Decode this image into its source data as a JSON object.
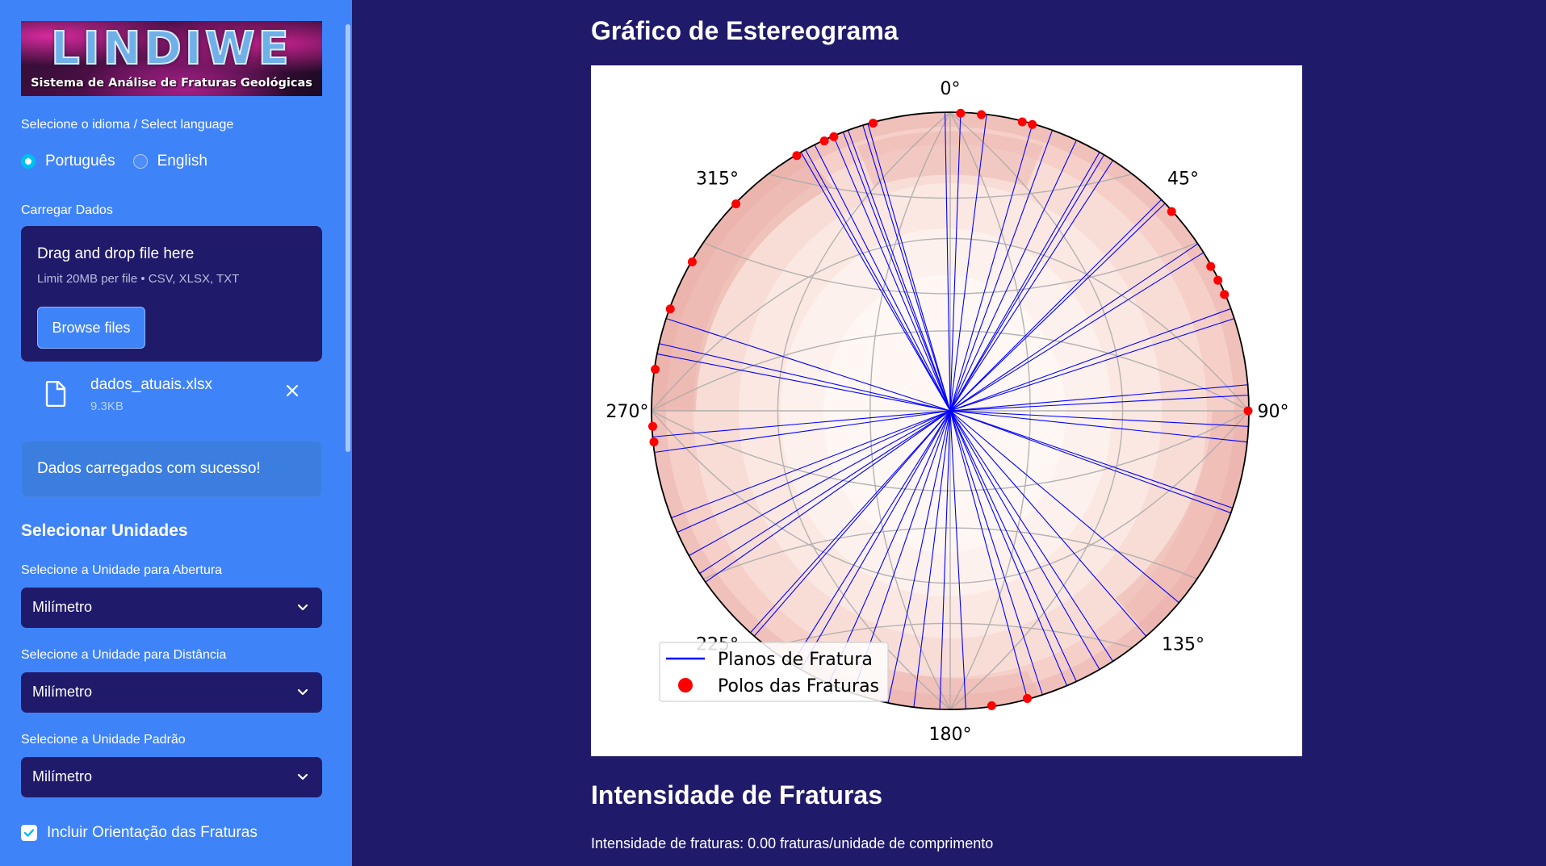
{
  "sidebar": {
    "logo": {
      "title": "LINDIWE",
      "subtitle": "Sistema de Análise de Fraturas Geológicas"
    },
    "language_label": "Selecione o idioma / Select language",
    "language_options": [
      {
        "label": "Português",
        "selected": true
      },
      {
        "label": "English",
        "selected": false
      }
    ],
    "upload_label": "Carregar Dados",
    "uploader": {
      "title": "Drag and drop file here",
      "limit": "Limit 20MB per file • CSV, XLSX, TXT",
      "button": "Browse files"
    },
    "file": {
      "name": "dados_atuais.xlsx",
      "size": "9.3KB",
      "icon": "file-icon",
      "remove_icon": "close-icon"
    },
    "success_message": "Dados carregados com sucesso!",
    "units_heading": "Selecionar Unidades",
    "selects": [
      {
        "label": "Selecione a Unidade para Abertura",
        "value": "Milímetro"
      },
      {
        "label": "Selecione a Unidade para Distância",
        "value": "Milímetro"
      },
      {
        "label": "Selecione a Unidade Padrão",
        "value": "Milímetro"
      }
    ],
    "checkbox": {
      "label": "Incluir Orientação das Fraturas",
      "checked": true
    }
  },
  "main": {
    "stereonet_heading": "Gráfico de Estereograma",
    "intensity_heading": "Intensidade de Fraturas",
    "intensity_text": "Intensidade de fraturas: 0.00 fraturas/unidade de comprimento"
  },
  "chart_data": {
    "type": "stereonet",
    "azimuth_labels": [
      "0°",
      "45°",
      "90°",
      "135°",
      "180°",
      "225°",
      "270°",
      "315°"
    ],
    "legend": [
      {
        "label": "Planos de Fratura",
        "color": "#0000ff",
        "marker": "line"
      },
      {
        "label": "Polos das Fraturas",
        "color": "#ff0000",
        "marker": "dot"
      }
    ],
    "legend_position": "lower-left",
    "plane_strikes_deg": [
      2,
      7,
      16,
      20,
      25,
      30,
      31,
      33,
      45,
      46,
      56,
      58,
      70,
      72,
      85,
      87,
      93,
      96,
      109,
      110,
      130,
      139,
      147,
      150,
      155,
      157,
      162,
      165,
      177,
      182,
      187,
      192,
      199,
      204,
      210,
      212,
      221,
      222,
      235,
      237,
      241,
      246,
      249,
      262,
      265,
      281,
      283,
      288,
      330,
      331,
      333,
      337,
      339,
      340,
      343,
      344,
      359
    ],
    "pole_azimuths_deg": [
      2,
      6,
      14,
      16,
      48,
      61,
      64,
      67,
      90,
      165,
      172,
      264,
      267,
      278,
      290,
      300,
      314,
      329,
      335,
      337,
      345
    ],
    "density_contours": true,
    "colors": {
      "planes": "#0000ff",
      "poles": "#ff0000",
      "density": "#e8a8a0"
    }
  },
  "theme": {
    "sidebar_bg": "#3f83f8",
    "main_bg": "#201a6a",
    "accent": "#00c0f2"
  }
}
